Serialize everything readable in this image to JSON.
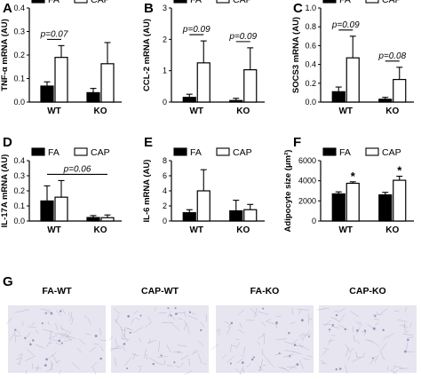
{
  "chart_data": [
    {
      "panel": "A",
      "type": "bar",
      "ylabel": "TNF-α mRNA (AU)",
      "categories": [
        "WT",
        "KO"
      ],
      "ylim": [
        0,
        0.4
      ],
      "yticks": [
        "0.0",
        "0.1",
        "0.2",
        "0.3",
        "0.4"
      ],
      "series": [
        {
          "name": "FA",
          "values": [
            0.068,
            0.04
          ],
          "errors": [
            0.018,
            0.018
          ]
        },
        {
          "name": "CAP",
          "values": [
            0.19,
            0.163
          ],
          "errors": [
            0.05,
            0.09
          ]
        }
      ],
      "legend": [
        "FA",
        "CAP"
      ],
      "annotations": [
        {
          "text": "p=0.07",
          "group": 0
        }
      ]
    },
    {
      "panel": "B",
      "type": "bar",
      "ylabel": "CCL-2 mRNA (AU)",
      "categories": [
        "WT",
        "KO"
      ],
      "ylim": [
        0,
        3
      ],
      "yticks": [
        "0",
        "1",
        "2",
        "3"
      ],
      "series": [
        {
          "name": "FA",
          "values": [
            0.15,
            0.05
          ],
          "errors": [
            0.1,
            0.07
          ]
        },
        {
          "name": "CAP",
          "values": [
            1.25,
            1.03
          ],
          "errors": [
            0.7,
            0.7
          ]
        }
      ],
      "legend": [
        "FA",
        "CAP"
      ],
      "annotations": [
        {
          "text": "p=0.09",
          "group": 0
        },
        {
          "text": "p=0.09",
          "group": 1
        }
      ]
    },
    {
      "panel": "C",
      "type": "bar",
      "ylabel": "SOCS3 mRNA (AU)",
      "categories": [
        "WT",
        "KO"
      ],
      "ylim": [
        0,
        1.0
      ],
      "yticks": [
        "0.0",
        "0.2",
        "0.4",
        "0.6",
        "0.8",
        "1.0"
      ],
      "series": [
        {
          "name": "FA",
          "values": [
            0.11,
            0.03
          ],
          "errors": [
            0.05,
            0.02
          ]
        },
        {
          "name": "CAP",
          "values": [
            0.47,
            0.24
          ],
          "errors": [
            0.23,
            0.13
          ]
        }
      ],
      "legend": [
        "FA",
        "CAP"
      ],
      "annotations": [
        {
          "text": "p=0.09",
          "group": 0
        },
        {
          "text": "p=0.08",
          "group": 1
        }
      ]
    },
    {
      "panel": "D",
      "type": "bar",
      "ylabel": "IL-17A mRNA (AU)",
      "categories": [
        "WT",
        "KO"
      ],
      "ylim": [
        0,
        0.4
      ],
      "yticks": [
        "0.0",
        "0.1",
        "0.2",
        "0.3",
        "0.4"
      ],
      "series": [
        {
          "name": "FA",
          "values": [
            0.133,
            0.023
          ],
          "errors": [
            0.1,
            0.013
          ]
        },
        {
          "name": "CAP",
          "values": [
            0.158,
            0.022
          ],
          "errors": [
            0.11,
            0.018
          ]
        }
      ],
      "legend": [
        "FA",
        "CAP"
      ],
      "annotations": [
        {
          "text": "p=0.06",
          "span": true
        }
      ]
    },
    {
      "panel": "E",
      "type": "bar",
      "ylabel": "IL-6 mRNA (AU)",
      "categories": [
        "WT",
        "KO"
      ],
      "ylim": [
        0,
        8
      ],
      "yticks": [
        "0",
        "2",
        "4",
        "6",
        "8"
      ],
      "series": [
        {
          "name": "FA",
          "values": [
            1.1,
            1.35
          ],
          "errors": [
            0.4,
            1.4
          ]
        },
        {
          "name": "CAP",
          "values": [
            4.0,
            1.5
          ],
          "errors": [
            2.8,
            0.7
          ]
        }
      ],
      "legend": [
        "FA",
        "CAP"
      ],
      "annotations": []
    },
    {
      "panel": "F",
      "type": "bar",
      "ylabel": "Adipocyte size (μm²)",
      "categories": [
        "WT",
        "KO"
      ],
      "ylim": [
        0,
        6000
      ],
      "yticks": [
        "0",
        "2000",
        "4000",
        "6000"
      ],
      "series": [
        {
          "name": "FA",
          "values": [
            2700,
            2600
          ],
          "errors": [
            200,
            250
          ]
        },
        {
          "name": "CAP",
          "values": [
            3750,
            4050
          ],
          "errors": [
            150,
            400
          ]
        }
      ],
      "legend": [
        "FA",
        "CAP"
      ],
      "annotations": [
        {
          "text": "*",
          "bar": "CAP",
          "group": 0
        },
        {
          "text": "*",
          "bar": "CAP",
          "group": 1
        }
      ]
    }
  ],
  "histology": {
    "panel": "G",
    "images": [
      {
        "title": "FA-WT"
      },
      {
        "title": "CAP-WT"
      },
      {
        "title": "FA-KO"
      },
      {
        "title": "CAP-KO"
      }
    ]
  },
  "colors": {
    "fa_fill": "#000000",
    "cap_fill": "#ffffff",
    "stroke": "#000000",
    "tissue_bg": "#e7e5ef",
    "tissue_cell": "#8c86b8"
  }
}
